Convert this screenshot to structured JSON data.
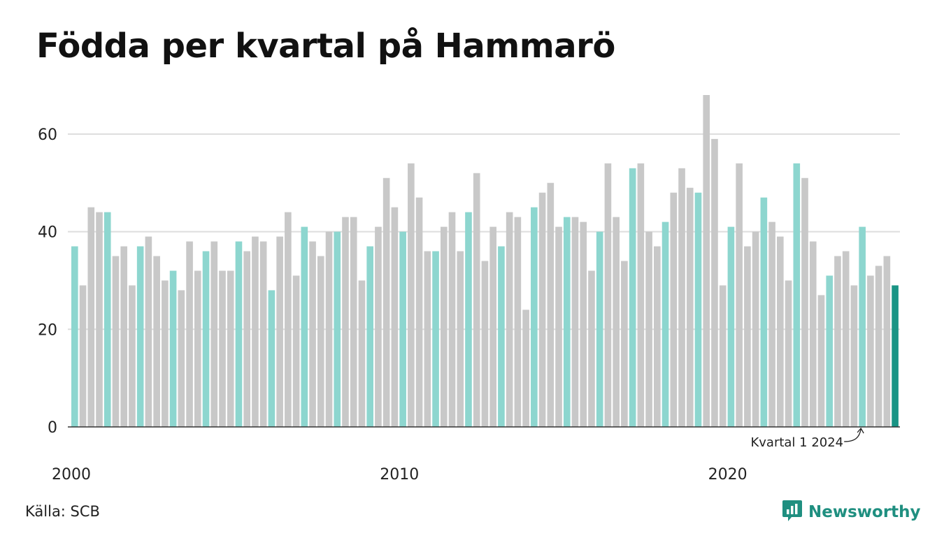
{
  "chart_data": {
    "type": "bar",
    "title": "Födda per kvartal på Hammarö",
    "source": "Källa: SCB",
    "xlabel": "",
    "ylabel": "",
    "ylim": [
      0,
      68
    ],
    "y_ticks": [
      0,
      20,
      40,
      60
    ],
    "x_tick_labels": [
      {
        "label": "2000",
        "quarter_index": 0
      },
      {
        "label": "2010",
        "quarter_index": 40
      },
      {
        "label": "2020",
        "quarter_index": 80
      }
    ],
    "grid": true,
    "first_period": "2000 Q1",
    "values": [
      37,
      29,
      45,
      44,
      44,
      35,
      37,
      29,
      37,
      39,
      35,
      30,
      32,
      28,
      38,
      32,
      36,
      38,
      32,
      32,
      38,
      36,
      39,
      38,
      28,
      39,
      44,
      31,
      41,
      38,
      35,
      40,
      40,
      43,
      43,
      30,
      37,
      41,
      51,
      45,
      40,
      54,
      47,
      36,
      36,
      41,
      44,
      36,
      44,
      52,
      34,
      41,
      37,
      44,
      43,
      24,
      45,
      48,
      50,
      41,
      43,
      43,
      42,
      32,
      40,
      54,
      43,
      34,
      53,
      54,
      40,
      37,
      42,
      48,
      53,
      49,
      48,
      68,
      59,
      29,
      41,
      54,
      37,
      40,
      47,
      42,
      39,
      30,
      54,
      51,
      38,
      27,
      31,
      35,
      36,
      29,
      41,
      31,
      33,
      35,
      29
    ],
    "annotation": {
      "text": "Kvartal 1 2024",
      "quarter_index": 96
    },
    "colors": {
      "q1": "#8dd6cf",
      "other": "#c8c8c8",
      "highlight": "#1a9485",
      "grid": "#dddddd",
      "axis": "#333333"
    }
  },
  "branding": {
    "name": "Newsworthy",
    "icon": "newsworthy-logo-icon"
  }
}
